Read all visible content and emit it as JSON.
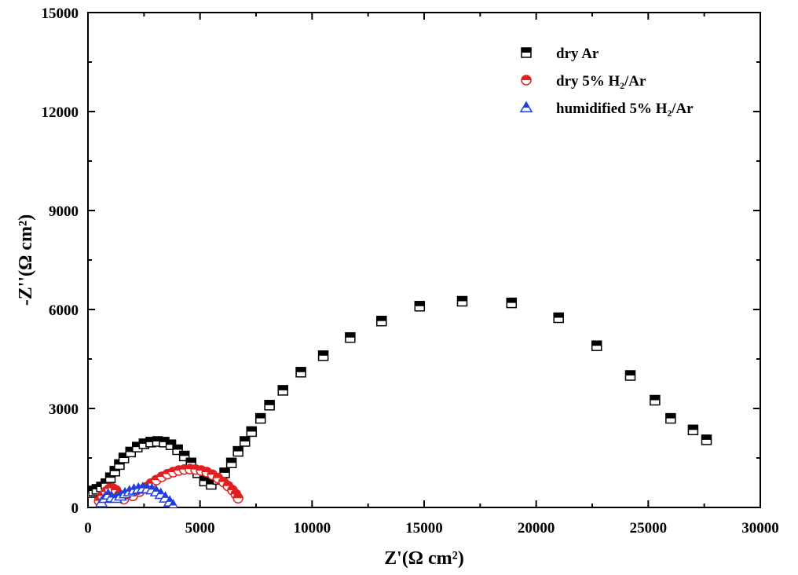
{
  "chart_data": {
    "type": "scatter",
    "xlabel": "Z'(Ω cm²)",
    "ylabel": "-Z''(Ω cm²)",
    "xlim": [
      0,
      30000
    ],
    "ylim": [
      0,
      15000
    ],
    "xticks": [
      "0",
      "5000",
      "10000",
      "15000",
      "20000",
      "25000",
      "30000"
    ],
    "yticks": [
      "0",
      "3000",
      "6000",
      "9000",
      "12000",
      "15000"
    ],
    "xtick_values": [
      0,
      5000,
      10000,
      15000,
      20000,
      25000,
      30000
    ],
    "ytick_values": [
      0,
      3000,
      6000,
      9000,
      12000,
      15000
    ],
    "legend_position": "top-right",
    "series": [
      {
        "name": "dry Ar",
        "marker": "square-half-filled",
        "color": "#000000",
        "x": [
          150,
          250,
          400,
          600,
          800,
          1000,
          1200,
          1400,
          1600,
          1900,
          2200,
          2500,
          2800,
          3100,
          3400,
          3700,
          4000,
          4300,
          4600,
          4900,
          5200,
          5500,
          5800,
          6100,
          6400,
          6700,
          7000,
          7300,
          7700,
          8100,
          8700,
          9500,
          10500,
          11700,
          13100,
          14800,
          16700,
          18900,
          21000,
          22700,
          24200,
          25300,
          26000,
          27000,
          27600
        ],
        "y": [
          450,
          500,
          550,
          620,
          720,
          900,
          1100,
          1300,
          1500,
          1680,
          1830,
          1930,
          1980,
          2000,
          1980,
          1900,
          1750,
          1560,
          1350,
          1050,
          800,
          700,
          850,
          1050,
          1350,
          1700,
          2000,
          2300,
          2700,
          3100,
          3550,
          4100,
          4600,
          5150,
          5650,
          6100,
          6250,
          6200,
          5750,
          4900,
          4000,
          3250,
          2700,
          2350,
          2050
        ]
      },
      {
        "name": "dry 5% H₂/Ar",
        "marker": "circle-half-filled",
        "color": "#e02020",
        "x": [
          500,
          650,
          800,
          950,
          1100,
          1250,
          1400,
          1600,
          2000,
          2300,
          2550,
          2800,
          3050,
          3300,
          3550,
          3800,
          4050,
          4300,
          4550,
          4800,
          5050,
          5300,
          5550,
          5800,
          6050,
          6250,
          6450,
          6600,
          6700
        ],
        "y": [
          200,
          350,
          480,
          560,
          580,
          520,
          380,
          250,
          350,
          480,
          600,
          720,
          830,
          930,
          1010,
          1070,
          1120,
          1150,
          1160,
          1150,
          1120,
          1070,
          990,
          890,
          770,
          650,
          520,
          400,
          280
        ]
      },
      {
        "name": "humidified 5% H₂/Ar",
        "marker": "triangle-half-filled",
        "color": "#1f3fe0",
        "x": [
          600,
          750,
          900,
          1050,
          1250,
          1450,
          1650,
          1850,
          2050,
          2250,
          2450,
          2650,
          2850,
          3050,
          3250,
          3450,
          3650,
          3800
        ],
        "y": [
          150,
          280,
          380,
          300,
          280,
          350,
          420,
          480,
          530,
          560,
          580,
          570,
          540,
          480,
          400,
          290,
          170,
          60
        ]
      }
    ]
  }
}
